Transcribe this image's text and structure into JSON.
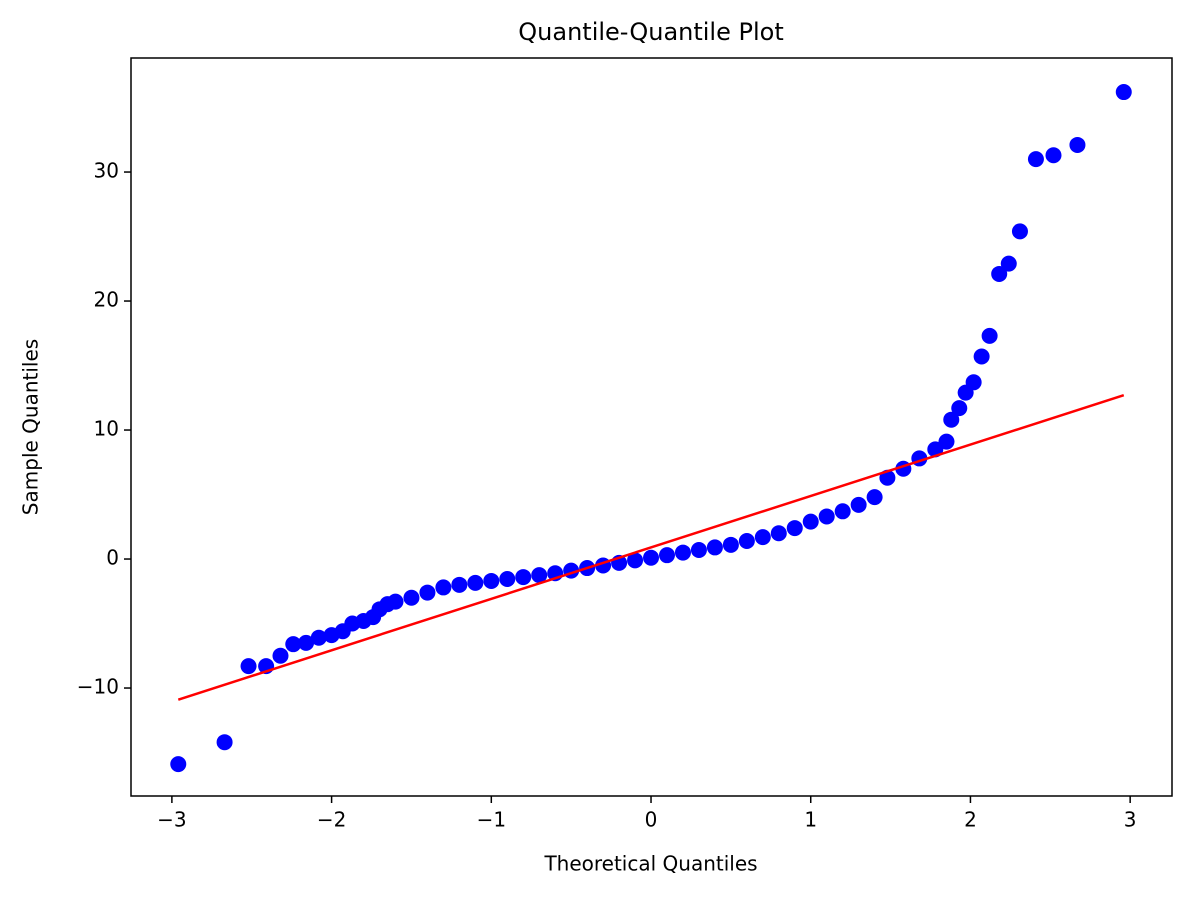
{
  "chart_data": {
    "type": "scatter",
    "title": "Quantile-Quantile Plot",
    "x_label": "Theoretical Quantiles",
    "y_label": "Sample Quantiles",
    "xlim": [
      -3.256,
      3.262
    ],
    "ylim": [
      -18.37,
      38.84
    ],
    "xticks": [
      {
        "value": -3,
        "label": "−3"
      },
      {
        "value": -2,
        "label": "−2"
      },
      {
        "value": -1,
        "label": "−1"
      },
      0,
      1,
      2,
      3
    ],
    "yticks": [
      {
        "value": -10,
        "label": "−10"
      },
      0,
      10,
      20,
      30
    ],
    "grid": false,
    "series": [
      {
        "color": "#0000ff",
        "style": "points",
        "x": [
          -2.96,
          -2.67,
          -2.52,
          -2.41,
          -2.32,
          -2.24,
          -2.16,
          -2.08,
          -2.0,
          -1.93,
          -1.87,
          -1.8,
          -1.74,
          -1.7,
          -1.65,
          -1.6,
          -1.5,
          -1.4,
          -1.3,
          -1.2,
          -1.1,
          -1.0,
          -0.9,
          -0.8,
          -0.7,
          -0.6,
          -0.5,
          -0.4,
          -0.3,
          -0.2,
          -0.1,
          0,
          0.1,
          0.2,
          0.3,
          0.4,
          0.5,
          0.6,
          0.7,
          0.8,
          0.9,
          1.0,
          1.1,
          1.2,
          1.3,
          1.4,
          1.48,
          1.58,
          1.68,
          1.78,
          1.85,
          1.88,
          1.93,
          1.97,
          2.02,
          2.07,
          2.12,
          2.18,
          2.24,
          2.31,
          2.41,
          2.52,
          2.67,
          2.96
        ],
        "values": [
          -15.9,
          -14.2,
          -8.3,
          -8.3,
          -7.5,
          -6.6,
          -6.5,
          -6.1,
          -5.9,
          -5.6,
          -5.0,
          -4.8,
          -4.5,
          -3.9,
          -3.5,
          -3.3,
          -3.0,
          -2.6,
          -2.2,
          -2.0,
          -1.85,
          -1.7,
          -1.55,
          -1.4,
          -1.25,
          -1.1,
          -0.9,
          -0.7,
          -0.5,
          -0.3,
          -0.1,
          0.1,
          0.3,
          0.5,
          0.7,
          0.9,
          1.1,
          1.4,
          1.7,
          2.0,
          2.4,
          2.9,
          3.3,
          3.7,
          4.2,
          4.8,
          6.3,
          7.0,
          7.8,
          8.5,
          9.1,
          10.8,
          11.7,
          12.9,
          13.7,
          15.7,
          17.3,
          22.1,
          22.9,
          25.4,
          31.0,
          31.3,
          32.1,
          36.2
        ]
      },
      {
        "color": "#ff0000",
        "style": "line",
        "x": [
          -2.96,
          2.96
        ],
        "values": [
          -10.9,
          12.7
        ]
      }
    ]
  }
}
